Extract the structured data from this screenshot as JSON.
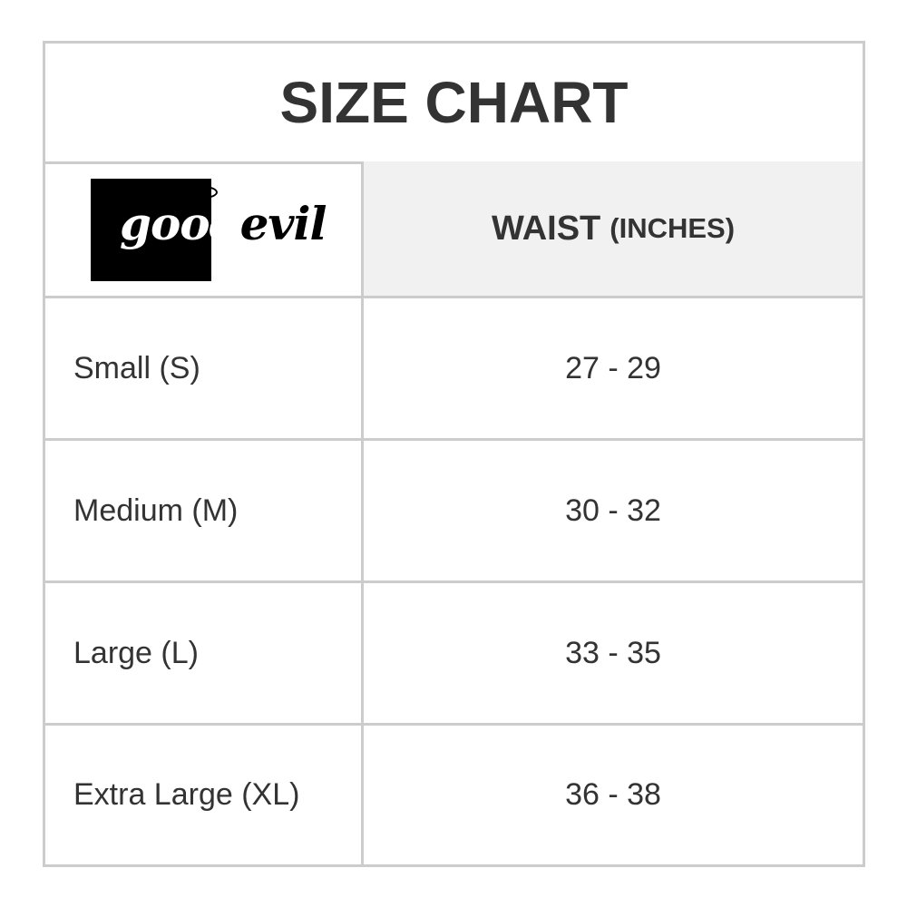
{
  "title": "SIZE CHART",
  "logo": {
    "text": "goodevil",
    "part1": "good",
    "part2": "evil"
  },
  "header": {
    "main": "WAIST",
    "unit": "(INCHES)"
  },
  "rows": [
    {
      "size": "Small (S)",
      "waist": "27 - 29"
    },
    {
      "size": "Medium (M)",
      "waist": "30 - 32"
    },
    {
      "size": "Large (L)",
      "waist": "33 - 35"
    },
    {
      "size": "Extra Large (XL)",
      "waist": "36 - 38"
    }
  ]
}
